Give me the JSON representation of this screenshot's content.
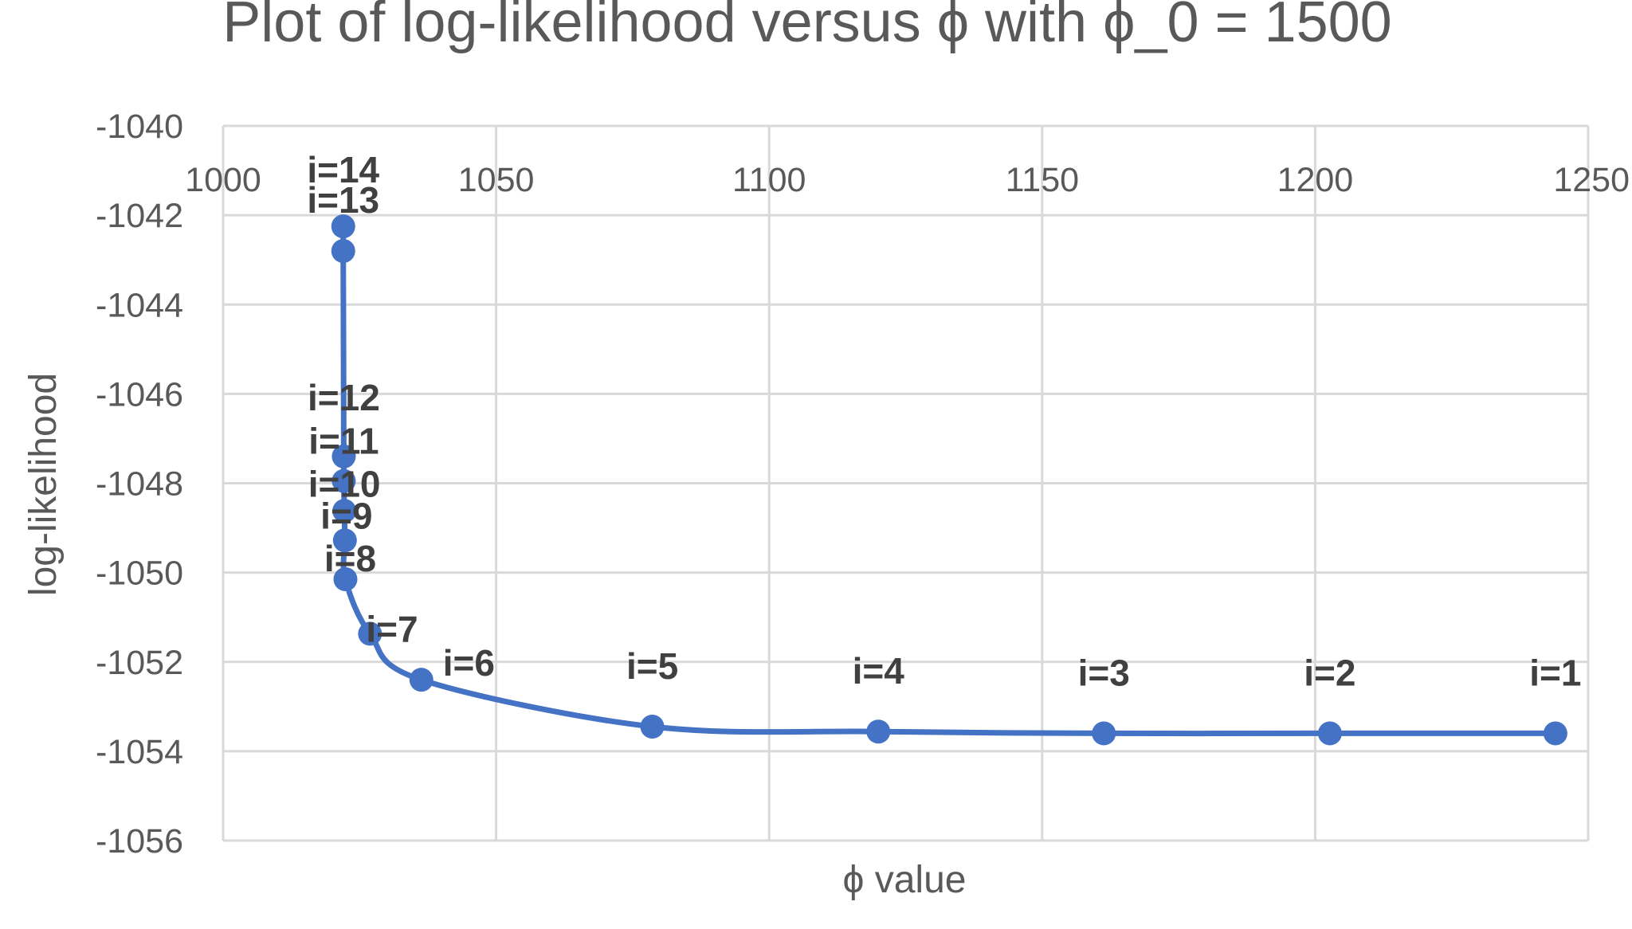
{
  "chart_data": {
    "type": "scatter",
    "title": "Plot of log-likelihood versus ϕ with  ϕ_0 = 1500",
    "xlabel": "ϕ value",
    "ylabel": "log-likelihood",
    "xlim": [
      1000,
      1250
    ],
    "ylim": [
      -1056,
      -1040
    ],
    "x_ticks": [
      1000,
      1050,
      1100,
      1150,
      1200,
      1250
    ],
    "y_ticks": [
      -1040,
      -1042,
      -1044,
      -1046,
      -1048,
      -1050,
      -1052,
      -1054,
      -1056
    ],
    "x_tick_labels": [
      "1000",
      "1050",
      "1100",
      "1150",
      "1200",
      "1250"
    ],
    "y_tick_labels": [
      "-1040",
      "-1042",
      "-1044",
      "-1046",
      "-1048",
      "-1050",
      "-1052",
      "-1054",
      "-1056"
    ],
    "x_axis_position": "top",
    "grid": true,
    "line": "smoothed",
    "marker": "circle",
    "color": "#4472c4",
    "points": [
      {
        "label": "i=1",
        "x": 1244.0,
        "y": -1053.6
      },
      {
        "label": "i=2",
        "x": 1202.7,
        "y": -1053.6
      },
      {
        "label": "i=3",
        "x": 1161.3,
        "y": -1053.6
      },
      {
        "label": "i=4",
        "x": 1120.0,
        "y": -1053.56
      },
      {
        "label": "i=5",
        "x": 1078.6,
        "y": -1053.45
      },
      {
        "label": "i=6",
        "x": 1036.3,
        "y": -1052.4
      },
      {
        "label": "i=7",
        "x": 1026.9,
        "y": -1051.37
      },
      {
        "label": "i=8",
        "x": 1022.4,
        "y": -1050.15
      },
      {
        "label": "i=9",
        "x": 1022.3,
        "y": -1049.28
      },
      {
        "label": "i=10",
        "x": 1022.2,
        "y": -1048.62
      },
      {
        "label": "i=11",
        "x": 1022.1,
        "y": -1047.95
      },
      {
        "label": "i=12",
        "x": 1022.1,
        "y": -1047.4
      },
      {
        "label": "i=13",
        "x": 1022.0,
        "y": -1042.8
      },
      {
        "label": "i=14",
        "x": 1022.0,
        "y": -1042.25
      }
    ]
  }
}
